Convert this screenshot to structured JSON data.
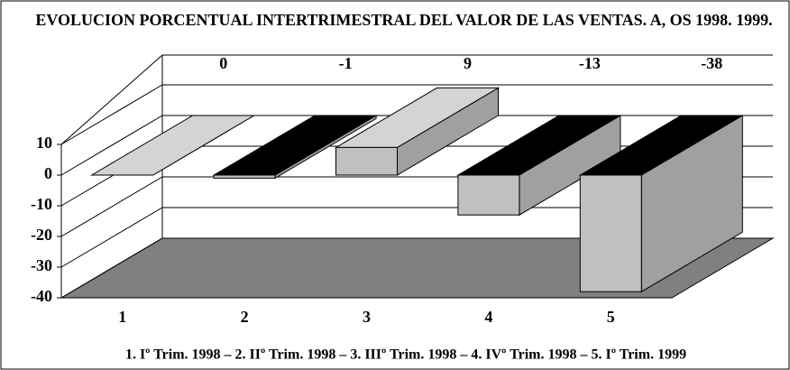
{
  "chart_data": {
    "type": "bar3d",
    "title": "EVOLUCION PORCENTUAL INTERTRIMESTRAL DEL VALOR DE LAS VENTAS. A, OS 1998. 1999.",
    "caption": "1. Iº Trim. 1998  –  2. IIº Trim. 1998  –  3. IIIº Trim. 1998  –  4. IVº Trim. 1998  –  5. Iº Trim. 1999",
    "categories": [
      "1",
      "2",
      "3",
      "4",
      "5"
    ],
    "values": [
      0,
      -1,
      9,
      -13,
      -38
    ],
    "top_colors": [
      "#d4d4d4",
      "#000000",
      "#d4d4d4",
      "#000000",
      "#000000"
    ],
    "front_color": "#c0c0c0",
    "side_color": "#a0a0a0",
    "floor_color": "#808080",
    "ylim": [
      -40,
      10
    ],
    "yticks": [
      10,
      0,
      -10,
      -20,
      -30,
      -40
    ],
    "grid": true
  }
}
